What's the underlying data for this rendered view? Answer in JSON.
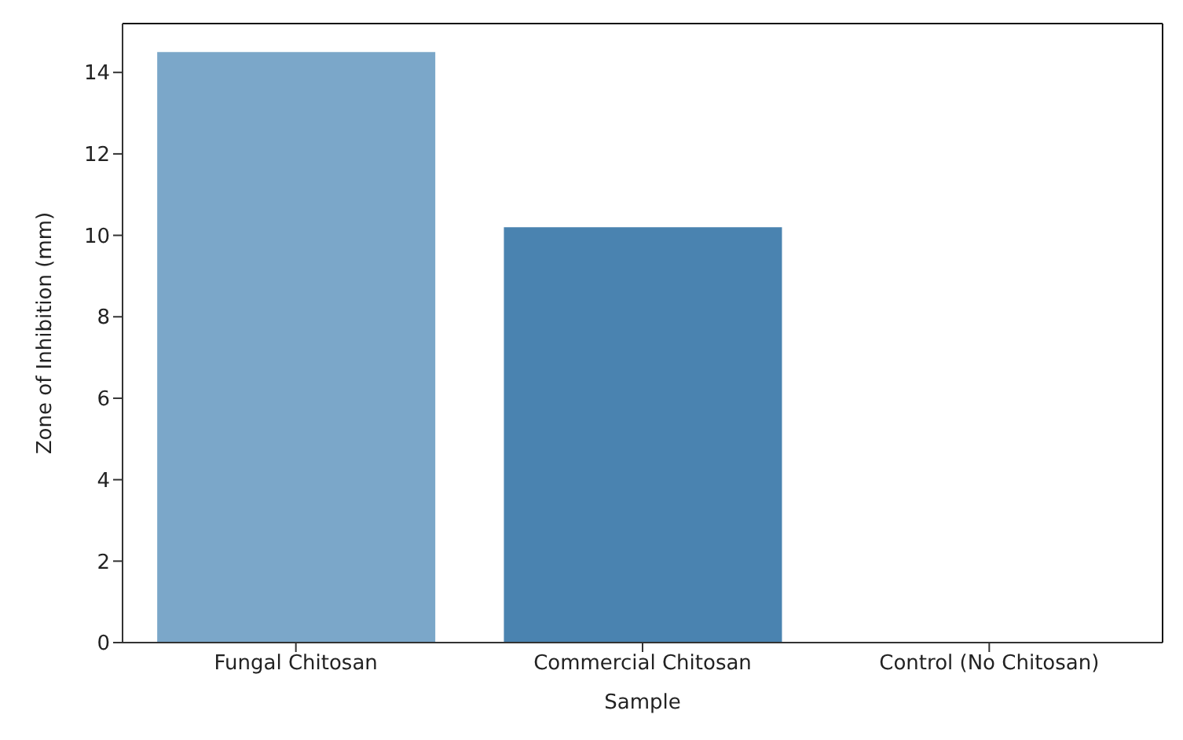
{
  "chart_data": {
    "type": "bar",
    "xlabel": "Sample",
    "ylabel": "Zone of Inhibition (mm)",
    "categories": [
      "Fungal Chitosan",
      "Commercial Chitosan",
      "Control (No Chitosan)"
    ],
    "values": [
      14.5,
      10.2,
      0
    ],
    "colors": [
      "#7ba7c9",
      "#4a83b0",
      "#2b6ba6"
    ],
    "ylim": [
      0,
      15.2
    ],
    "yticks": [
      0,
      2,
      4,
      6,
      8,
      10,
      12,
      14
    ],
    "grid": false
  }
}
